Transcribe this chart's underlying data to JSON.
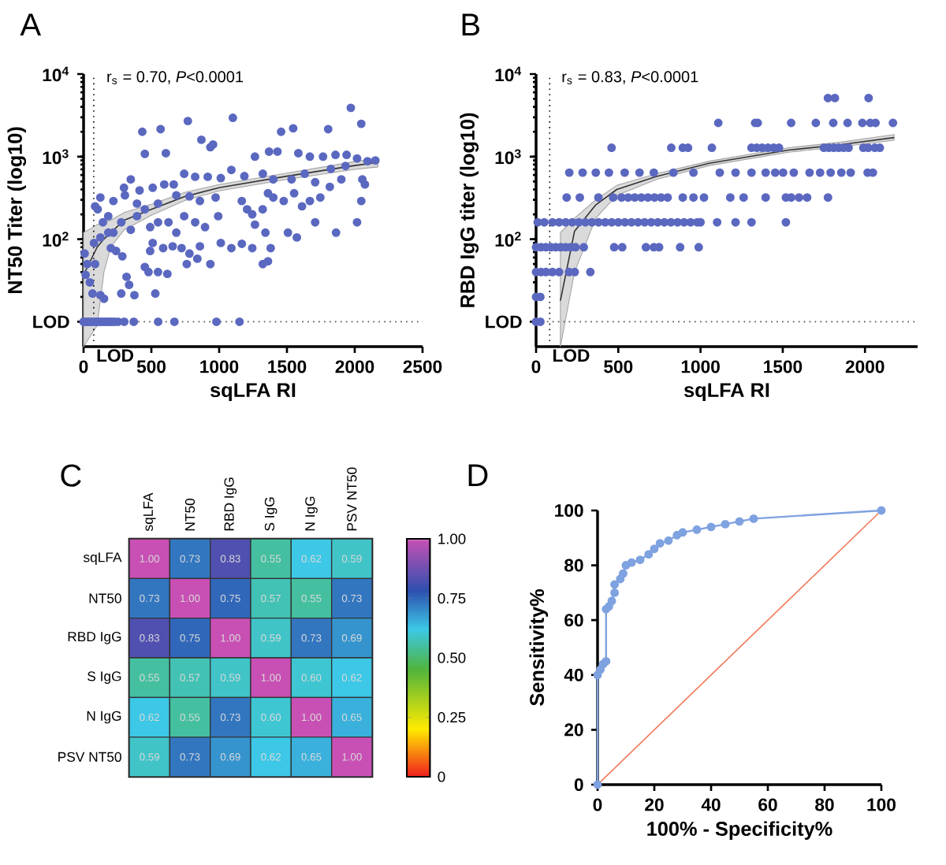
{
  "chart_data": [
    {
      "type": "scatter",
      "title": "A",
      "xlabel": "sqLFA RI",
      "ylabel": "NT50 Titer (log10)",
      "annotations": [
        "r$_{s}$ = 0.70, *P*<0.0001"
      ],
      "log": true,
      "marker": "circle",
      "xlim": [
        0,
        2500
      ],
      "ylim": [
        5,
        10000
      ],
      "xticks": [
        0,
        500,
        1000,
        1500,
        2000,
        2500
      ],
      "yticks": [
        {
          "value": 10,
          "label": "LOD"
        },
        {
          "value": 100,
          "label": "10$^{2}$"
        },
        {
          "value": 1000,
          "label": "10$^{3}$"
        },
        {
          "value": 10000,
          "label": "10$^{4}$"
        }
      ],
      "ref_lines": [
        {
          "axis": "x",
          "value": 75,
          "label": "LOD",
          "line_style": "dotted"
        },
        {
          "axis": "y",
          "value": 10,
          "line_style": "dotted"
        }
      ],
      "series": [
        {
          "type": "scatter",
          "color": "#5b68c0",
          "x": [
            0,
            16,
            32,
            48,
            64,
            80,
            96,
            112,
            128,
            144,
            160,
            176,
            192,
            210,
            230,
            255,
            300,
            370,
            550,
            670,
            980,
            1150,
            433,
            452,
            568,
            607,
            769,
            869,
            935,
            955,
            1101,
            1457,
            1546,
            1804,
            1971,
            2048,
            2152,
            1264,
            1368,
            1430,
            1584,
            1669,
            1766,
            1858,
            1940,
            2017,
            2094,
            1090,
            1186,
            1322,
            1399,
            1534,
            1631,
            1708,
            1824,
            1932,
            2056,
            2075,
            348,
            413,
            510,
            665,
            742,
            823,
            916,
            1012,
            85,
            104,
            220,
            298,
            305,
            394,
            452,
            549,
            595,
            684,
            781,
            858,
            974,
            993,
            1167,
            1206,
            1244,
            1321,
            1360,
            1399,
            1476,
            1553,
            1611,
            1669,
            1746,
            1816,
            1901,
            1708,
            1862,
            2017,
            2048,
            1264,
            1341,
            1507,
            1573,
            1380,
            1244,
            1090,
            1167,
            1322,
            1360,
            8,
            27,
            15,
            46,
            66,
            124,
            151,
            85,
            77,
            124,
            182,
            201,
            240,
            286,
            317,
            278,
            375,
            336,
            452,
            479,
            529,
            549,
            618,
            510,
            491,
            587,
            657,
            723,
            781,
            839,
            761,
            935,
            1012,
            858,
            684,
            549,
            491,
            348,
            220,
            278,
            182,
            143,
            124,
            394,
            626,
            742,
            823,
            896
          ],
          "values": [
            10,
            10,
            10,
            10,
            10,
            10,
            10,
            10,
            10,
            10,
            10,
            10,
            10,
            10,
            10,
            10,
            10,
            10,
            10,
            10,
            10,
            10,
            2000,
            1080,
            2150,
            1100,
            2700,
            1600,
            1300,
            1400,
            2950,
            2000,
            2200,
            2150,
            3900,
            2500,
            900,
            1000,
            1150,
            1150,
            1100,
            1000,
            1000,
            1050,
            1050,
            950,
            880,
            690,
            580,
            620,
            530,
            530,
            620,
            490,
            710,
            770,
            530,
            460,
            530,
            390,
            420,
            460,
            620,
            570,
            570,
            550,
            250,
            230,
            290,
            420,
            340,
            270,
            230,
            270,
            460,
            340,
            330,
            290,
            320,
            190,
            290,
            230,
            200,
            230,
            360,
            320,
            290,
            360,
            250,
            290,
            320,
            430,
            530,
            160,
            120,
            160,
            290,
            150,
            120,
            120,
            105,
            78,
            78,
            78,
            88,
            50,
            54,
            67,
            50,
            37,
            30,
            22,
            21,
            19,
            50,
            90,
            105,
            120,
            78,
            72,
            62,
            35,
            22,
            21,
            28,
            46,
            40,
            22,
            40,
            38,
            90,
            72,
            78,
            82,
            78,
            67,
            58,
            50,
            50,
            90,
            82,
            120,
            160,
            140,
            130,
            120,
            160,
            190,
            160,
            320,
            190,
            160,
            190,
            160,
            140
          ]
        },
        {
          "type": "line",
          "marker": "none",
          "color": "#333333",
          "x": [
            0,
            100,
            150,
            200,
            300,
            500,
            750,
            1000,
            1500,
            2000,
            2170
          ],
          "values": [
            37,
            80,
            100,
            120,
            170,
            230,
            330,
            420,
            580,
            780,
            850
          ],
          "lower": [
            5,
            9,
            40,
            80,
            130,
            195,
            295,
            385,
            530,
            700,
            750
          ],
          "upper": [
            120,
            150,
            160,
            170,
            210,
            265,
            370,
            460,
            630,
            870,
            950
          ]
        }
      ]
    },
    {
      "type": "scatter",
      "title": "B",
      "xlabel": "sqLFA RI",
      "ylabel": "RBD IgG titer (log10)",
      "annotations": [
        "r$_{s}$ = 0.83, *P*<0.0001"
      ],
      "log": true,
      "marker": "circle",
      "xlim": [
        0,
        2320
      ],
      "ylim": [
        5,
        10000
      ],
      "xticks": [
        0,
        500,
        1000,
        1500,
        2000
      ],
      "yticks": [
        {
          "value": 10,
          "label": "LOD"
        },
        {
          "value": 100,
          "label": "10$^{2}$"
        },
        {
          "value": 1000,
          "label": "10$^{3}$"
        },
        {
          "value": 10000,
          "label": "10$^{4}$"
        }
      ],
      "ref_lines": [
        {
          "axis": "x",
          "value": 83,
          "label": "LOD",
          "line_style": "dotted"
        },
        {
          "axis": "y",
          "value": 10,
          "line_style": "dotted"
        }
      ],
      "series": [
        {
          "type": "scatter",
          "color": "#5b68c0",
          "x": [
            1775,
            1817,
            2022,
            1108,
            1332,
            1348,
            1551,
            1701,
            1807,
            1894,
            1984,
            2032,
            2064,
            2170,
            459,
            822,
            892,
            924,
            1069,
            1310,
            1342,
            1375,
            1410,
            1445,
            1477,
            1750,
            1780,
            1810,
            1840,
            1870,
            1900,
            1990,
            2020,
            2060,
            2090,
            202,
            283,
            363,
            443,
            539,
            629,
            716,
            835,
            957,
            1117,
            1213,
            1310,
            1396,
            1454,
            1502,
            1567,
            1663,
            1727,
            1791,
            1856,
            1913,
            2016,
            2048,
            186,
            266,
            379,
            469,
            520,
            560,
            600,
            640,
            680,
            720,
            760,
            800,
            892,
            957,
            1021,
            1181,
            1262,
            1396,
            1519,
            1551,
            1599,
            1648,
            1775,
            10,
            50,
            100,
            140,
            180,
            220,
            260,
            300,
            340,
            380,
            420,
            460,
            500,
            540,
            580,
            620,
            660,
            700,
            740,
            780,
            820,
            860,
            900,
            940,
            980,
            1000,
            1101,
            1213,
            1310,
            1519,
            0,
            30,
            60,
            90,
            120,
            150,
            180,
            210,
            240,
            290,
            475,
            524,
            668,
            716,
            748,
            876,
            989,
            0,
            30,
            60,
            100,
            140,
            200,
            235,
            330,
            0,
            26,
            0,
            26
          ],
          "values": [
            5120,
            5120,
            5120,
            2560,
            2560,
            2560,
            2560,
            2560,
            2560,
            2560,
            2560,
            2560,
            2560,
            2560,
            1280,
            1280,
            1280,
            1280,
            1280,
            1280,
            1280,
            1280,
            1280,
            1280,
            1280,
            1280,
            1280,
            1280,
            1280,
            1280,
            1280,
            1280,
            1280,
            1280,
            1280,
            640,
            640,
            640,
            640,
            640,
            640,
            640,
            640,
            640,
            640,
            640,
            640,
            640,
            640,
            640,
            640,
            640,
            640,
            640,
            640,
            640,
            640,
            640,
            320,
            320,
            320,
            320,
            320,
            320,
            320,
            320,
            320,
            320,
            320,
            320,
            320,
            320,
            320,
            320,
            320,
            320,
            320,
            320,
            320,
            320,
            320,
            160,
            160,
            160,
            160,
            160,
            160,
            160,
            160,
            160,
            160,
            160,
            160,
            160,
            160,
            160,
            160,
            160,
            160,
            160,
            160,
            160,
            160,
            160,
            160,
            160,
            160,
            160,
            160,
            160,
            160,
            80,
            80,
            80,
            80,
            80,
            80,
            80,
            80,
            80,
            80,
            80,
            80,
            80,
            80,
            80,
            80,
            80,
            40,
            40,
            40,
            40,
            40,
            40,
            40,
            40,
            20,
            20,
            10,
            10
          ]
        },
        {
          "type": "line",
          "marker": "none",
          "color": "#333333",
          "x": [
            148,
            234,
            363,
            491,
            732,
            1053,
            1535,
            1856,
            2177
          ],
          "values": [
            18,
            125,
            260,
            400,
            575,
            830,
            1200,
            1400,
            1700
          ],
          "lower": [
            5,
            40,
            180,
            340,
            530,
            780,
            1130,
            1320,
            1580
          ],
          "upper": [
            120,
            180,
            300,
            450,
            620,
            880,
            1280,
            1500,
            1850
          ]
        }
      ]
    },
    {
      "type": "heatmap",
      "title": "C",
      "categories": [
        "sqLFA",
        "NT50",
        "RBD IgG",
        "S IgG",
        "N IgG",
        "PSV NT50"
      ],
      "y_categories": [
        "sqLFA",
        "NT50",
        "RBD IgG",
        "S IgG",
        "N IgG",
        "PSV NT50"
      ],
      "cells": [
        [
          1,
          0.73,
          0.83,
          0.55,
          0.62,
          0.59
        ],
        [
          0.73,
          1,
          0.75,
          0.57,
          0.55,
          0.73
        ],
        [
          0.83,
          0.75,
          1,
          0.59,
          0.73,
          0.69
        ],
        [
          0.55,
          0.57,
          0.59,
          1,
          0.6,
          0.62
        ],
        [
          0.62,
          0.55,
          0.73,
          0.6,
          1,
          0.65
        ],
        [
          0.59,
          0.73,
          0.69,
          0.62,
          0.65,
          1
        ]
      ],
      "cell_labels": [
        [
          "1.00",
          "0.73",
          "0.83",
          "0.55",
          "0.62",
          "0.59"
        ],
        [
          "0.73",
          "1.00",
          "0.75",
          "0.57",
          "0.55",
          "0.73"
        ],
        [
          "0.83",
          "0.75",
          "1.00",
          "0.59",
          "0.73",
          "0.69"
        ],
        [
          "0.55",
          "0.57",
          "0.59",
          "1.00",
          "0.60",
          "0.62"
        ],
        [
          "0.62",
          "0.55",
          "0.73",
          "0.60",
          "1.00",
          "0.65"
        ],
        [
          "0.59",
          "0.73",
          "0.69",
          "0.62",
          "0.65",
          "1.00"
        ]
      ],
      "clim": [
        0,
        1
      ],
      "cticks": [
        0,
        0.25,
        {
          "value": 0.5,
          "label": "0.50"
        },
        0.75,
        {
          "value": 1,
          "label": "1.00"
        }
      ]
    },
    {
      "type": "line",
      "title": "D",
      "xlabel": "100% - Specificity%",
      "ylabel": "Sensitivity%",
      "marker": "circle",
      "xlim": [
        0,
        100
      ],
      "ylim": [
        0,
        100
      ],
      "xticks": [
        0,
        20,
        40,
        60,
        80,
        100
      ],
      "yticks": [
        0,
        20,
        40,
        60,
        80,
        100
      ],
      "series": [
        {
          "color": "#7fa2e0",
          "x": [
            0,
            0,
            1,
            2,
            3,
            3,
            4,
            5,
            6,
            6,
            8,
            9,
            10,
            12,
            15,
            18,
            20,
            22,
            25,
            28,
            30,
            35,
            40,
            45,
            50,
            55,
            100
          ],
          "values": [
            0,
            40,
            42,
            44,
            45,
            64,
            65,
            67,
            70,
            73,
            75,
            77,
            80,
            81,
            82,
            84,
            86,
            88,
            89,
            91,
            92,
            93,
            94,
            95,
            96,
            97,
            100
          ]
        },
        {
          "marker": "none",
          "color": "#f07858",
          "x": [
            0,
            100
          ],
          "values": [
            0,
            100
          ]
        }
      ]
    }
  ]
}
